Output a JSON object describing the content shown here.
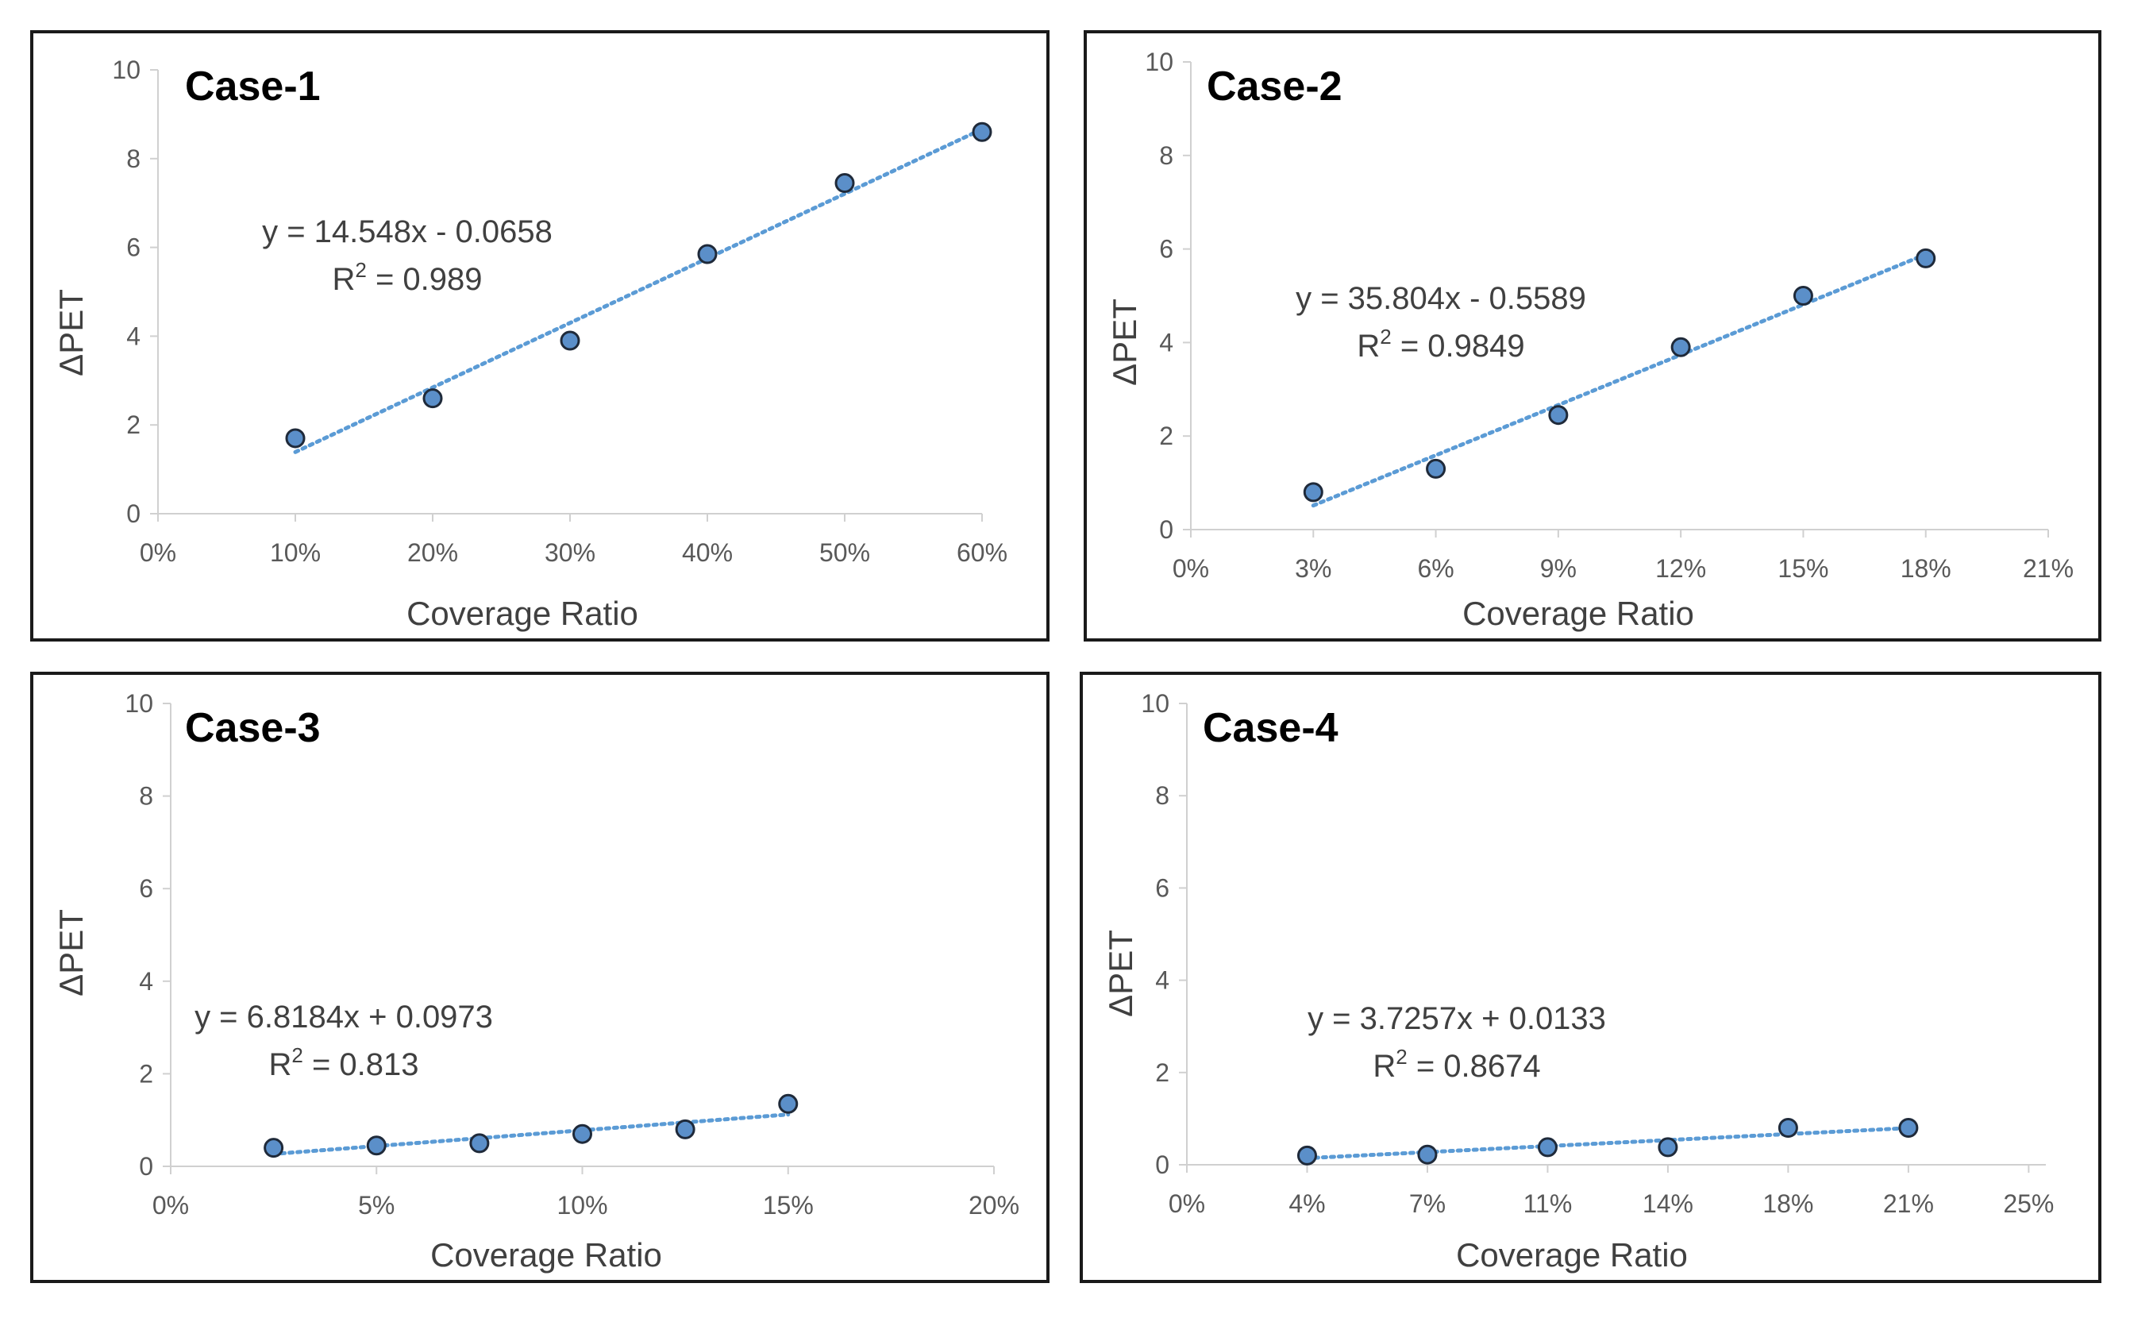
{
  "page": {
    "background": "#ffffff"
  },
  "style": {
    "frame_color": "#1a1a1a",
    "axis_color": "#d0d0d0",
    "tick_text_color": "#595959",
    "marker_fill": "#5b8fc9",
    "marker_stroke": "#1f2a3a",
    "trendline_color": "#5b9bd5",
    "title_color": "#000000",
    "text_color": "#404040"
  },
  "chart_data": [
    {
      "type": "scatter",
      "title": "Case-1",
      "xlabel": "Coverage Ratio",
      "ylabel": "ΔPET",
      "xlim": [
        0,
        0.6
      ],
      "ylim": [
        0,
        10
      ],
      "x_ticks": [
        0,
        0.1,
        0.2,
        0.3,
        0.4,
        0.5,
        0.6
      ],
      "x_tick_labels": [
        "0%",
        "10%",
        "20%",
        "30%",
        "40%",
        "50%",
        "60%"
      ],
      "y_ticks": [
        0,
        2,
        4,
        6,
        8,
        10
      ],
      "y_tick_labels": [
        "0",
        "2",
        "4",
        "6",
        "8",
        "10"
      ],
      "x": [
        0.1,
        0.2,
        0.3,
        0.4,
        0.5,
        0.6
      ],
      "y": [
        1.7,
        2.6,
        3.9,
        5.85,
        7.45,
        8.6
      ],
      "trendline": {
        "slope": 14.548,
        "intercept": -0.0658,
        "x_range": [
          0.1,
          0.6
        ]
      },
      "equation": "y = 14.548x - 0.0658",
      "r2_label": "R",
      "r2_exp": "2",
      "r2_value": " = 0.989",
      "grid": false,
      "legend": "none"
    },
    {
      "type": "scatter",
      "title": "Case-2",
      "xlabel": "Coverage Ratio",
      "ylabel": "ΔPET",
      "xlim": [
        0,
        0.21
      ],
      "ylim": [
        0,
        10
      ],
      "x_ticks": [
        0,
        0.03,
        0.06,
        0.09,
        0.12,
        0.15,
        0.18,
        0.21
      ],
      "x_tick_labels": [
        "0%",
        "3%",
        "6%",
        "9%",
        "12%",
        "15%",
        "18%",
        "21%"
      ],
      "y_ticks": [
        0,
        2,
        4,
        6,
        8,
        10
      ],
      "y_tick_labels": [
        "0",
        "2",
        "4",
        "6",
        "8",
        "10"
      ],
      "x": [
        0.03,
        0.06,
        0.09,
        0.12,
        0.15,
        0.18
      ],
      "y": [
        0.8,
        1.3,
        2.45,
        3.9,
        5.0,
        5.8
      ],
      "trendline": {
        "slope": 35.804,
        "intercept": -0.5589,
        "x_range": [
          0.03,
          0.18
        ]
      },
      "equation": "y = 35.804x - 0.5589",
      "r2_label": "R",
      "r2_exp": "2",
      "r2_value": " = 0.9849",
      "grid": false,
      "legend": "none"
    },
    {
      "type": "scatter",
      "title": "Case-3",
      "xlabel": "Coverage Ratio",
      "ylabel": "ΔPET",
      "xlim": [
        0,
        0.2
      ],
      "ylim": [
        0,
        10
      ],
      "x_ticks": [
        0,
        0.05,
        0.1,
        0.15,
        0.2
      ],
      "x_tick_labels": [
        "0%",
        "5%",
        "10%",
        "15%",
        "20%"
      ],
      "y_ticks": [
        0,
        2,
        4,
        6,
        8,
        10
      ],
      "y_tick_labels": [
        "0",
        "2",
        "4",
        "6",
        "8",
        "10"
      ],
      "x": [
        0.025,
        0.05,
        0.075,
        0.1,
        0.125,
        0.15
      ],
      "y": [
        0.4,
        0.45,
        0.5,
        0.7,
        0.8,
        1.35
      ],
      "trendline": {
        "slope": 6.8184,
        "intercept": 0.0973,
        "x_range": [
          0.025,
          0.15
        ]
      },
      "equation": "y = 6.8184x + 0.0973",
      "r2_label": "R",
      "r2_exp": "2",
      "r2_value": " = 0.813",
      "grid": false,
      "legend": "none"
    },
    {
      "type": "scatter",
      "title": "Case-4",
      "xlabel": "Coverage Ratio",
      "ylabel": "ΔPET",
      "xlim": [
        0,
        0.25
      ],
      "ylim": [
        0,
        10
      ],
      "x_ticks": [
        0,
        0.035,
        0.07,
        0.105,
        0.14,
        0.175,
        0.21,
        0.245
      ],
      "x_tick_labels": [
        "0%",
        "4%",
        "7%",
        "11%",
        "14%",
        "18%",
        "21%",
        "25%"
      ],
      "y_ticks": [
        0,
        2,
        4,
        6,
        8,
        10
      ],
      "y_tick_labels": [
        "0",
        "2",
        "4",
        "6",
        "8",
        "10"
      ],
      "x": [
        0.035,
        0.07,
        0.105,
        0.14,
        0.175,
        0.21
      ],
      "y": [
        0.2,
        0.22,
        0.38,
        0.38,
        0.8,
        0.8
      ],
      "trendline": {
        "slope": 3.7257,
        "intercept": 0.0133,
        "x_range": [
          0.035,
          0.21
        ]
      },
      "equation": "y = 3.7257x + 0.0133",
      "r2_label": "R",
      "r2_exp": "2",
      "r2_value": " = 0.8674",
      "grid": false,
      "legend": "none"
    }
  ]
}
